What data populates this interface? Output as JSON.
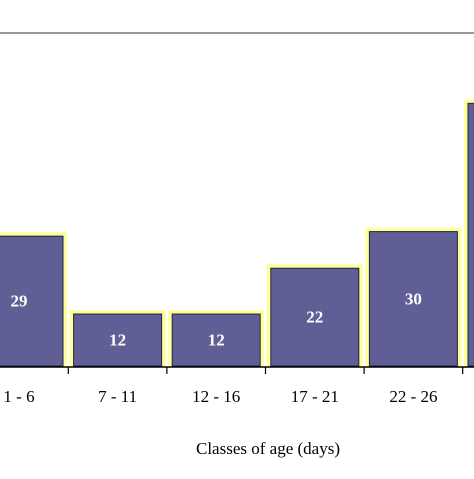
{
  "chart_data": {
    "type": "bar",
    "categories": [
      "1 - 6",
      "7 - 11",
      "12 - 16",
      "17 - 21",
      "22 - 26",
      ""
    ],
    "values": [
      29,
      12,
      12,
      22,
      30,
      58
    ],
    "data_labels": [
      "29",
      "12",
      "12",
      "22",
      "30",
      ""
    ],
    "title": "",
    "xlabel": "Classes of age (days)",
    "ylabel": "",
    "ylim": [
      0,
      60
    ],
    "grid": false,
    "legend": "none",
    "colors": {
      "bar_fill": "#5f5f96",
      "bar_border": "#ffff99",
      "bar_edge": "#22224a",
      "axis_line": "#000000",
      "top_line": "#999999"
    }
  }
}
